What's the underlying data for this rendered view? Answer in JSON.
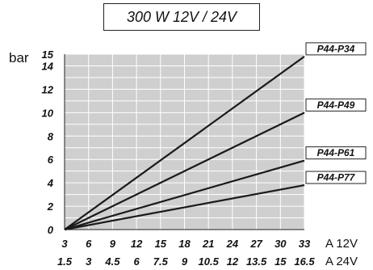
{
  "title": "300 W  12V / 24V",
  "chart_data": {
    "type": "line",
    "title": "300 W  12V / 24V",
    "ylabel": "bar",
    "xlabel_primary": "A 12V",
    "xlabel_secondary": "A 24V",
    "x_ticks_12v": [
      "3",
      "6",
      "9",
      "12",
      "15",
      "18",
      "21",
      "24",
      "27",
      "30",
      "33"
    ],
    "x_ticks_24v": [
      "1.5",
      "3",
      "4.5",
      "6",
      "7.5",
      "9",
      "10.5",
      "12",
      "13.5",
      "15",
      "16.5"
    ],
    "xlim": [
      3,
      33
    ],
    "ylim": [
      0,
      15
    ],
    "y_ticks": [
      "0",
      "2",
      "4",
      "6",
      "8",
      "10",
      "12",
      "14",
      "15"
    ],
    "grid": true,
    "series": [
      {
        "name": "P44-P34",
        "x": [
          3,
          33
        ],
        "y": [
          0,
          14.8
        ]
      },
      {
        "name": "P44-P49",
        "x": [
          3,
          33
        ],
        "y": [
          0,
          10
        ]
      },
      {
        "name": "P44-P61",
        "x": [
          3,
          33
        ],
        "y": [
          0,
          5.9
        ]
      },
      {
        "name": "P44-P77",
        "x": [
          3,
          33
        ],
        "y": [
          0,
          3.8
        ]
      }
    ]
  }
}
